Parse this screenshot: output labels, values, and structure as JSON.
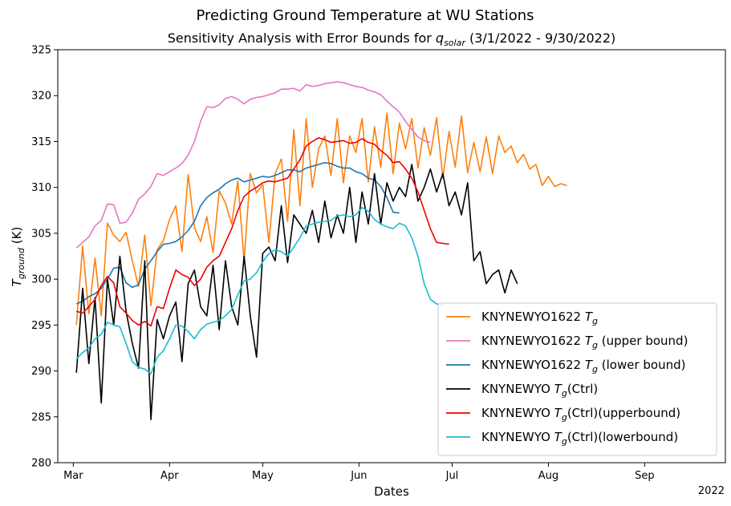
{
  "figure": {
    "suptitle": "Predicting Ground Temperature at WU Stations",
    "title": "Sensitivity Analysis with Error Bounds for q_solar (3/1/2022 - 9/30/2022)"
  },
  "chart_data": {
    "type": "line",
    "title": "Sensitivity Analysis with Error Bounds for q_solar (3/1/2022 - 9/30/2022)",
    "suptitle": "Predicting Ground Temperature at WU Stations",
    "xlabel": "Dates",
    "ylabel": "T_ground (K)",
    "year_label": "2022",
    "ylim": [
      280,
      325
    ],
    "yticks": [
      280,
      285,
      290,
      295,
      300,
      305,
      310,
      315,
      320,
      325
    ],
    "xlim": [
      "2022-02-24",
      "2022-09-27"
    ],
    "xtick_labels": [
      {
        "date": "2022-03-01",
        "label": "Mar"
      },
      {
        "date": "2022-04-01",
        "label": "Apr"
      },
      {
        "date": "2022-05-01",
        "label": "May"
      },
      {
        "date": "2022-06-01",
        "label": "Jun"
      },
      {
        "date": "2022-07-01",
        "label": "Jul"
      },
      {
        "date": "2022-08-01",
        "label": "Aug"
      },
      {
        "date": "2022-09-01",
        "label": "Sep"
      }
    ],
    "grid": false,
    "legend_position": "lower-right",
    "series": [
      {
        "name": "KNYNEWYO1622 T_g",
        "color": "#ff7f0e",
        "start": "2022-03-02",
        "step_days": 2,
        "values": [
          295.0,
          303.6,
          296.2,
          302.3,
          296.0,
          306.1,
          304.8,
          304.1,
          305.1,
          302.0,
          299.2,
          304.8,
          297.1,
          303.2,
          304.2,
          306.5,
          308.0,
          303.0,
          311.4,
          305.6,
          304.1,
          306.8,
          302.9,
          309.6,
          308.3,
          306.0,
          310.7,
          302.0,
          311.5,
          309.4,
          310.3,
          304.0,
          311.5,
          313.1,
          306.3,
          316.3,
          308.0,
          317.5,
          310.0,
          314.2,
          315.6,
          311.3,
          317.5,
          310.5,
          315.6,
          313.8,
          317.5,
          310.6,
          316.6,
          312.2,
          318.1,
          311.5,
          317.0,
          314.2,
          317.5,
          312.1,
          316.5,
          313.5,
          317.6,
          311.0,
          316.1,
          312.2,
          317.8,
          311.6,
          314.9,
          311.7,
          315.5,
          311.5,
          315.6,
          313.8,
          314.5,
          312.7,
          313.6,
          312.0,
          312.5,
          310.2,
          311.2,
          310.1,
          310.4,
          310.2
        ]
      },
      {
        "name": "KNYNEWYO1622 T_g (upper bound)",
        "color": "#e377c2",
        "start": "2022-03-02",
        "step_days": 2,
        "values": [
          303.4,
          304.0,
          304.6,
          305.8,
          306.4,
          308.2,
          308.1,
          306.1,
          306.2,
          307.2,
          308.7,
          309.3,
          310.1,
          311.5,
          311.3,
          311.7,
          312.1,
          312.6,
          313.5,
          315.0,
          317.2,
          318.8,
          318.7,
          319.0,
          319.7,
          319.9,
          319.6,
          319.1,
          319.6,
          319.8,
          319.9,
          320.1,
          320.3,
          320.7,
          320.7,
          320.8,
          320.5,
          321.2,
          321.0,
          321.1,
          321.3,
          321.4,
          321.5,
          321.4,
          321.2,
          321.0,
          320.9,
          320.6,
          320.4,
          320.1,
          319.4,
          318.8,
          318.2,
          317.2,
          316.3,
          315.5,
          315.1,
          314.9
        ]
      },
      {
        "name": "KNYNEWYO1622 T_g (lower bound)",
        "color": "#1f77b4",
        "start": "2022-03-02",
        "step_days": 2,
        "values": [
          297.3,
          297.6,
          298.1,
          298.4,
          299.0,
          300.0,
          301.2,
          301.3,
          299.6,
          299.1,
          299.4,
          301.1,
          302.0,
          303.0,
          303.8,
          303.9,
          304.1,
          304.6,
          305.3,
          306.3,
          308.0,
          308.9,
          309.4,
          309.8,
          310.4,
          310.8,
          311.0,
          310.6,
          310.8,
          311.0,
          311.2,
          311.1,
          311.3,
          311.6,
          311.9,
          311.9,
          311.7,
          312.1,
          312.3,
          312.5,
          312.7,
          312.6,
          312.3,
          312.1,
          312.1,
          311.7,
          311.5,
          311.0,
          310.8,
          310.1,
          308.9,
          307.3,
          307.2
        ]
      },
      {
        "name": "KNYNEWYO T_g(Ctrl)",
        "color": "#000000",
        "start": "2022-03-02",
        "step_days": 2,
        "values": [
          289.8,
          299.0,
          290.8,
          298.0,
          286.5,
          300.0,
          295.0,
          302.5,
          296.5,
          293.0,
          290.3,
          302.0,
          284.7,
          295.6,
          293.5,
          296.0,
          297.5,
          291.0,
          299.5,
          301.0,
          297.0,
          296.0,
          301.5,
          294.5,
          302.0,
          297.0,
          295.0,
          302.5,
          296.0,
          291.5,
          302.8,
          303.5,
          302.0,
          308.0,
          301.8,
          307.0,
          306.0,
          305.0,
          307.5,
          304.0,
          308.5,
          304.5,
          307.0,
          305.0,
          310.0,
          304.0,
          309.5,
          306.0,
          311.5,
          306.0,
          310.5,
          308.5,
          310.0,
          309.0,
          312.5,
          308.5,
          310.0,
          312.0,
          309.5,
          311.5,
          308.0,
          309.5,
          307.0,
          310.5,
          302.0,
          303.0,
          299.5,
          300.5,
          301.0,
          298.5,
          301.0,
          299.5
        ]
      },
      {
        "name": "KNYNEWYO T_g(Ctrl)(upperbound)",
        "color": "#ee0000",
        "start": "2022-03-02",
        "step_days": 2,
        "values": [
          296.5,
          296.3,
          297.0,
          297.8,
          299.3,
          300.3,
          299.6,
          297.0,
          296.3,
          295.5,
          295.0,
          295.4,
          294.9,
          297.0,
          296.8,
          299.0,
          301.0,
          300.5,
          300.2,
          299.3,
          300.0,
          301.3,
          302.0,
          302.5,
          304.0,
          305.5,
          307.5,
          309.0,
          309.6,
          310.0,
          310.5,
          310.7,
          310.6,
          310.8,
          311.0,
          312.0,
          313.0,
          314.5,
          315.0,
          315.4,
          315.2,
          314.9,
          315.0,
          315.1,
          314.8,
          314.9,
          315.3,
          314.9,
          314.7,
          314.0,
          313.5,
          312.7,
          312.8,
          312.0,
          311.0,
          309.5,
          307.5,
          305.5,
          304.0,
          303.9,
          303.8
        ]
      },
      {
        "name": "KNYNEWYO T_g(Ctrl)(lowerbound)",
        "color": "#17becf",
        "start": "2022-03-02",
        "step_days": 2,
        "values": [
          291.3,
          292.0,
          292.5,
          293.5,
          294.0,
          295.3,
          295.0,
          294.8,
          293.0,
          291.0,
          290.4,
          290.2,
          289.7,
          291.5,
          292.2,
          293.5,
          295.0,
          294.9,
          294.3,
          293.5,
          294.5,
          295.1,
          295.3,
          295.5,
          296.0,
          296.7,
          298.3,
          299.8,
          300.0,
          300.7,
          301.9,
          302.8,
          303.2,
          303.0,
          302.5,
          303.5,
          304.5,
          305.8,
          306.0,
          306.2,
          306.3,
          306.4,
          306.9,
          307.0,
          306.8,
          307.0,
          307.8,
          307.4,
          306.5,
          306.0,
          305.7,
          305.5,
          306.1,
          305.8,
          304.5,
          302.5,
          299.5,
          297.8,
          297.3,
          297.2
        ]
      }
    ]
  },
  "legend": {
    "items": [
      {
        "prefix": "KNYNEWYO1622 ",
        "sym": "T",
        "sub": "g",
        "suffix": "",
        "color": "#ff7f0e"
      },
      {
        "prefix": "KNYNEWYO1622 ",
        "sym": "T",
        "sub": "g",
        "suffix": " (upper bound)",
        "color": "#e377c2"
      },
      {
        "prefix": "KNYNEWYO1622 ",
        "sym": "T",
        "sub": "g",
        "suffix": " (lower bound)",
        "color": "#1f77b4"
      },
      {
        "prefix": "KNYNEWYO ",
        "sym": "T",
        "sub": "g",
        "suffix": "(Ctrl)",
        "color": "#000000"
      },
      {
        "prefix": "KNYNEWYO ",
        "sym": "T",
        "sub": "g",
        "suffix": "(Ctrl)(upperbound)",
        "color": "#ee0000"
      },
      {
        "prefix": "KNYNEWYO ",
        "sym": "T",
        "sub": "g",
        "suffix": "(Ctrl)(lowerbound)",
        "color": "#17becf"
      }
    ]
  }
}
